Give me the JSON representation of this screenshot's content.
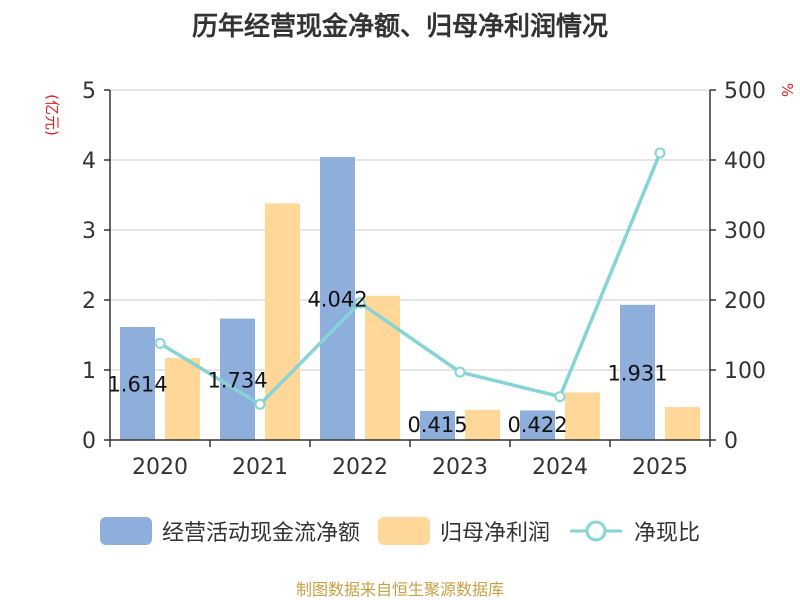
{
  "chart_data": {
    "type": "bar",
    "title": "历年经营现金净额、归母净利润情况",
    "categories": [
      "2020",
      "2021",
      "2022",
      "2023",
      "2024",
      "2025"
    ],
    "y_left": {
      "label": "(亿元)",
      "range": [
        0,
        5
      ],
      "ticks": [
        "0",
        "1",
        "2",
        "3",
        "4",
        "5"
      ]
    },
    "y_right": {
      "label": "%",
      "range": [
        0,
        500
      ],
      "ticks": [
        "0",
        "100",
        "200",
        "300",
        "400",
        "500"
      ]
    },
    "series": [
      {
        "name": "经营活动现金流净额",
        "type": "bar",
        "axis": "left",
        "color": "#8eaedb",
        "values": [
          1.614,
          1.734,
          4.042,
          0.415,
          0.422,
          1.931
        ],
        "data_labels": [
          "1.614",
          "1.734",
          "4.042",
          "0.415",
          "0.422",
          "1.931"
        ]
      },
      {
        "name": "归母净利润",
        "type": "bar",
        "axis": "left",
        "color": "#ffd899",
        "values": [
          1.17,
          3.38,
          2.06,
          0.43,
          0.68,
          0.47
        ]
      },
      {
        "name": "净现比",
        "type": "line",
        "axis": "right",
        "color": "#86d3d8",
        "values": [
          138,
          51,
          196,
          97,
          62,
          410
        ]
      }
    ],
    "grid": true,
    "legend_position": "bottom"
  },
  "source_text": "制图数据来自恒生聚源数据库"
}
